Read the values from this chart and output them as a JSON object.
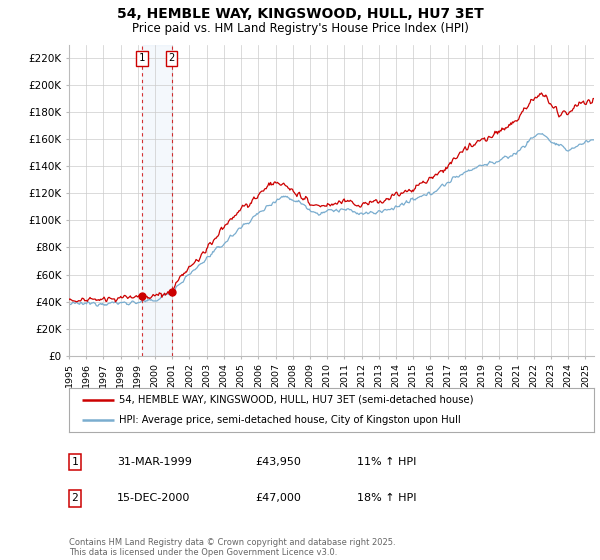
{
  "title": "54, HEMBLE WAY, KINGSWOOD, HULL, HU7 3ET",
  "subtitle": "Price paid vs. HM Land Registry's House Price Index (HPI)",
  "ylabel_ticks": [
    "£0",
    "£20K",
    "£40K",
    "£60K",
    "£80K",
    "£100K",
    "£120K",
    "£140K",
    "£160K",
    "£180K",
    "£200K",
    "£220K"
  ],
  "ytick_values": [
    0,
    20000,
    40000,
    60000,
    80000,
    100000,
    120000,
    140000,
    160000,
    180000,
    200000,
    220000
  ],
  "ylim": [
    0,
    230000
  ],
  "xlim_start": 1995.0,
  "xlim_end": 2025.5,
  "red_line_color": "#cc0000",
  "blue_line_color": "#7aadcf",
  "marker1_x": 1999.25,
  "marker1_y": 43950,
  "marker2_x": 2000.96,
  "marker2_y": 47000,
  "marker_box_color": "#cc0000",
  "sale1_date": "31-MAR-1999",
  "sale1_price": "£43,950",
  "sale1_hpi": "11% ↑ HPI",
  "sale2_date": "15-DEC-2000",
  "sale2_price": "£47,000",
  "sale2_hpi": "18% ↑ HPI",
  "legend_line1": "54, HEMBLE WAY, KINGSWOOD, HULL, HU7 3ET (semi-detached house)",
  "legend_line2": "HPI: Average price, semi-detached house, City of Kingston upon Hull",
  "footer": "Contains HM Land Registry data © Crown copyright and database right 2025.\nThis data is licensed under the Open Government Licence v3.0.",
  "background_color": "#ffffff",
  "grid_color": "#cccccc",
  "title_fontsize": 10,
  "subtitle_fontsize": 8.5,
  "tick_fontsize": 7.5,
  "legend_fontsize": 7.5
}
